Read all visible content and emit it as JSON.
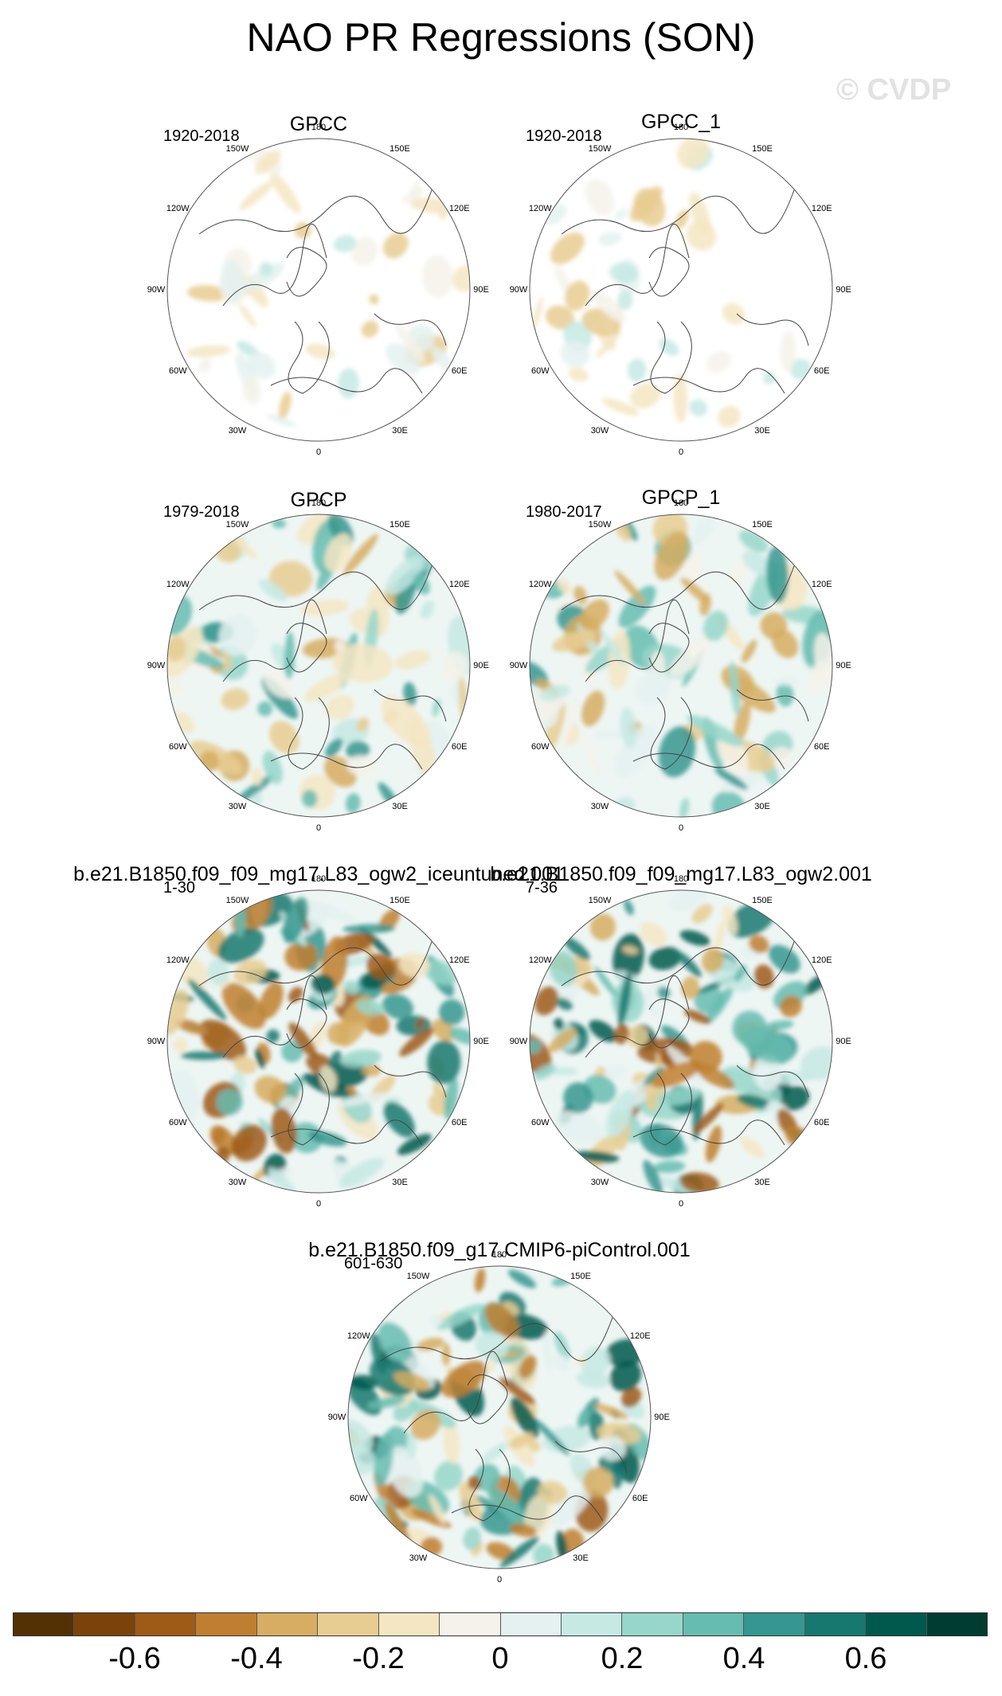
{
  "title": "NAO PR Regressions (SON)",
  "watermark": "© CVDP",
  "longitude_labels": [
    "180",
    "150E",
    "120E",
    "90E",
    "60E",
    "30E",
    "0",
    "30W",
    "60W",
    "90W",
    "120W",
    "150W"
  ],
  "panels": [
    {
      "title": "GPCC",
      "period": "1920-2018",
      "pattern": "sparse"
    },
    {
      "title": "GPCC_1",
      "period": "1920-2018",
      "pattern": "sparse"
    },
    {
      "title": "GPCP",
      "period": "1979-2018",
      "pattern": "full"
    },
    {
      "title": "GPCP_1",
      "period": "1980-2017",
      "pattern": "full"
    },
    {
      "title": "b.e21.B1850.f09_f09_mg17.L83_ogw2_iceuntuned.001",
      "period": "1-30",
      "pattern": "model"
    },
    {
      "title": "b.e21.B1850.f09_f09_mg17.L83_ogw2.001",
      "period": "7-36",
      "pattern": "model"
    },
    {
      "title": "b.e21.B1850.f09_g17.CMIP6-piControl.001",
      "period": "601-630",
      "pattern": "model"
    }
  ],
  "colorbar": {
    "colors": [
      "#543005",
      "#7a430c",
      "#9e5a17",
      "#c07f30",
      "#d6ad62",
      "#e8cd92",
      "#f5e6c3",
      "#f5f2ea",
      "#e4f1f0",
      "#c6e9e4",
      "#97d6ca",
      "#66bcb0",
      "#35978f",
      "#16786f",
      "#01594e",
      "#003c30"
    ],
    "labels": [
      "-0.6",
      "-0.4",
      "-0.2",
      "0",
      "0.2",
      "0.4",
      "0.6"
    ]
  }
}
